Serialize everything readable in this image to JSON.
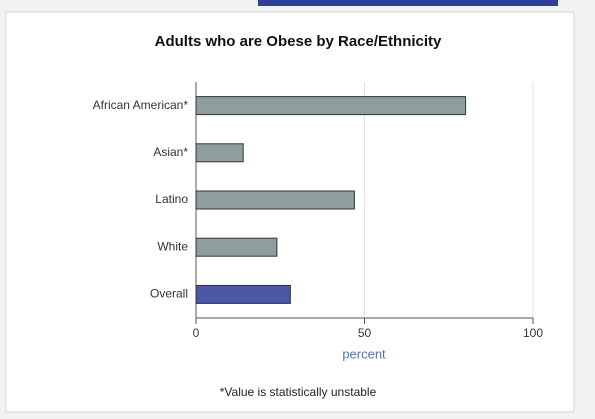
{
  "chart_data": {
    "type": "hbar",
    "title": "Adults who are Obese by Race/Ethnicity",
    "categories": [
      "African American*",
      "Asian*",
      "Latino",
      "White",
      "Overall"
    ],
    "values": [
      80,
      14,
      47,
      24,
      28
    ],
    "colors": [
      "#8e9d9d",
      "#8e9d9d",
      "#8e9d9d",
      "#8e9d9d",
      "#4a58a8"
    ],
    "xlabel": "percent",
    "xlim": [
      0,
      100
    ],
    "xticks": [
      0,
      50,
      100
    ],
    "grid": true,
    "footnote": "*Value is statistically unstable"
  }
}
